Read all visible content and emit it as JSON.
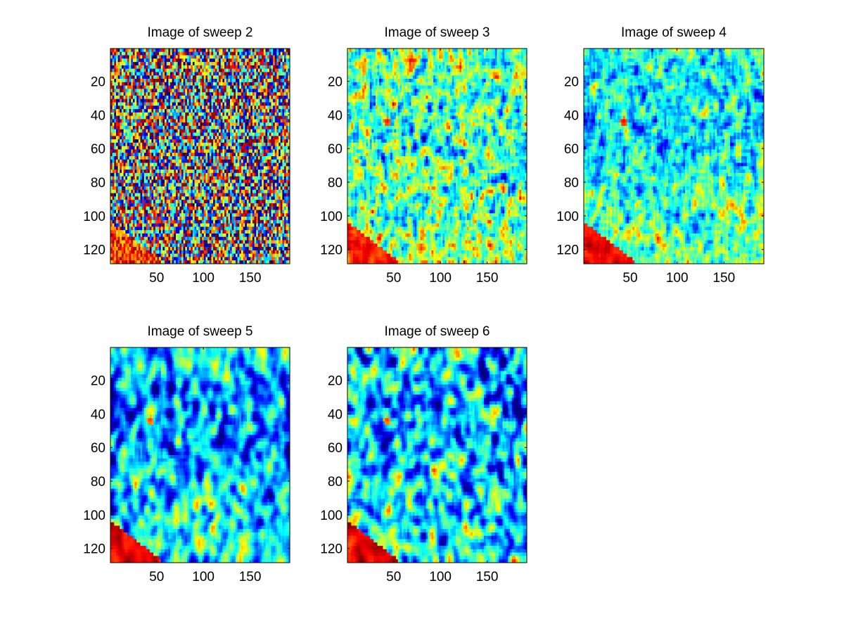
{
  "figure": {
    "background": "#ffffff",
    "colormap": "jet",
    "colormap_stops": [
      "#00008f",
      "#0000ff",
      "#00ffff",
      "#ffff00",
      "#ff0000",
      "#800000"
    ]
  },
  "chart_data": [
    {
      "type": "heatmap",
      "title": "Image of sweep  2",
      "xlabel": "",
      "ylabel": "",
      "x_ticks": [
        50,
        100,
        150
      ],
      "y_ticks": [
        20,
        40,
        60,
        80,
        100,
        120
      ],
      "xlim": [
        0.5,
        192.5
      ],
      "ylim": [
        0.5,
        128.5
      ],
      "y_direction": "reversed",
      "grid": false,
      "field_mean": 0.52,
      "field_noise": 0.55,
      "field_smoothing": 0,
      "row_drift": 0.0,
      "hot_corner": {
        "x_range": [
          1,
          55
        ],
        "y_range": [
          105,
          128
        ],
        "value": 0.82
      },
      "hot_spot": {
        "x": 43,
        "y": 44,
        "value": 0.88
      }
    },
    {
      "type": "heatmap",
      "title": "Image of sweep  3",
      "xlabel": "",
      "ylabel": "",
      "x_ticks": [
        50,
        100,
        150
      ],
      "y_ticks": [
        20,
        40,
        60,
        80,
        100,
        120
      ],
      "xlim": [
        0.5,
        192.5
      ],
      "ylim": [
        0.5,
        128.5
      ],
      "y_direction": "reversed",
      "grid": false,
      "field_mean": 0.47,
      "field_noise": 0.5,
      "field_smoothing": 1,
      "row_drift": -0.04,
      "hot_corner": {
        "x_range": [
          1,
          55
        ],
        "y_range": [
          105,
          128
        ],
        "value": 0.85
      },
      "hot_spot": {
        "x": 43,
        "y": 44,
        "value": 0.9
      }
    },
    {
      "type": "heatmap",
      "title": "Image of sweep  4",
      "xlabel": "",
      "ylabel": "",
      "x_ticks": [
        50,
        100,
        150
      ],
      "y_ticks": [
        20,
        40,
        60,
        80,
        100,
        120
      ],
      "xlim": [
        0.5,
        192.5
      ],
      "ylim": [
        0.5,
        128.5
      ],
      "y_direction": "reversed",
      "grid": false,
      "field_mean": 0.42,
      "field_noise": 0.42,
      "field_smoothing": 1,
      "row_drift": -0.06,
      "hot_corner": {
        "x_range": [
          1,
          55
        ],
        "y_range": [
          105,
          128
        ],
        "value": 0.88
      },
      "hot_spot": {
        "x": 43,
        "y": 44,
        "value": 0.92
      }
    },
    {
      "type": "heatmap",
      "title": "Image of sweep  5",
      "xlabel": "",
      "ylabel": "",
      "x_ticks": [
        50,
        100,
        150
      ],
      "y_ticks": [
        20,
        40,
        60,
        80,
        100,
        120
      ],
      "xlim": [
        0.5,
        192.5
      ],
      "ylim": [
        0.5,
        128.5
      ],
      "y_direction": "reversed",
      "grid": false,
      "field_mean": 0.35,
      "field_noise": 0.5,
      "field_smoothing": 2,
      "row_drift": -0.06,
      "hot_corner": {
        "x_range": [
          1,
          55
        ],
        "y_range": [
          105,
          128
        ],
        "value": 0.9
      },
      "hot_spot": {
        "x": 43,
        "y": 44,
        "value": 0.85
      }
    },
    {
      "type": "heatmap",
      "title": "Image of sweep  6",
      "xlabel": "",
      "ylabel": "",
      "x_ticks": [
        50,
        100,
        150
      ],
      "y_ticks": [
        20,
        40,
        60,
        80,
        100,
        120
      ],
      "xlim": [
        0.5,
        192.5
      ],
      "ylim": [
        0.5,
        128.5
      ],
      "y_direction": "reversed",
      "grid": false,
      "field_mean": 0.35,
      "field_noise": 0.5,
      "field_smoothing": 2,
      "row_drift": -0.06,
      "hot_corner": {
        "x_range": [
          1,
          55
        ],
        "y_range": [
          105,
          128
        ],
        "value": 0.9
      },
      "hot_spot": {
        "x": 43,
        "y": 44,
        "value": 0.85
      }
    }
  ]
}
